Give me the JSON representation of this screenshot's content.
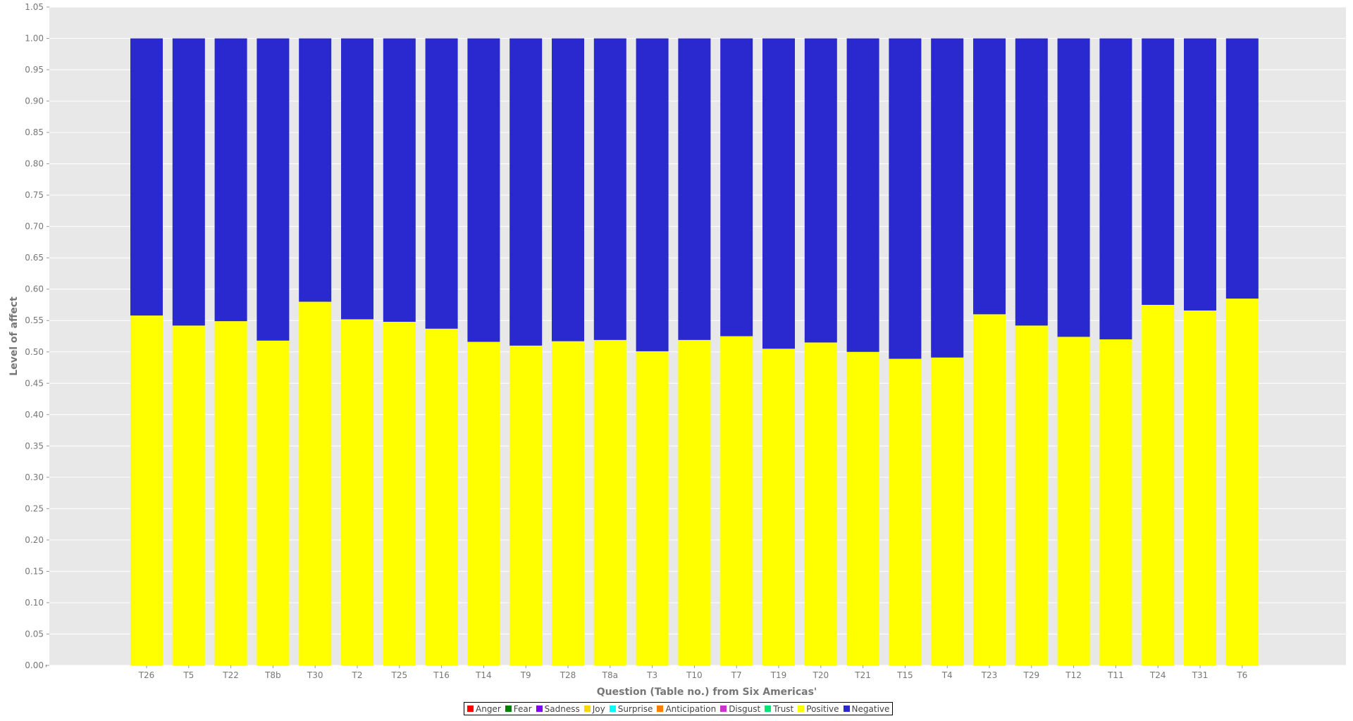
{
  "chart_data": {
    "type": "bar",
    "stacked": true,
    "xlabel": "Question (Table no.) from Six Americas'",
    "ylabel": "Level of affect",
    "ylim": [
      0,
      1.05
    ],
    "yticks": [
      "0.00",
      "0.05",
      "0.10",
      "0.15",
      "0.20",
      "0.25",
      "0.30",
      "0.35",
      "0.40",
      "0.45",
      "0.50",
      "0.55",
      "0.60",
      "0.65",
      "0.70",
      "0.75",
      "0.80",
      "0.85",
      "0.90",
      "0.95",
      "1.00",
      "1.05"
    ],
    "grid": true,
    "legend_position": "bottom-center",
    "leading_tick_label": "'",
    "categories": [
      "T26",
      "T5",
      "T22",
      "T8b",
      "T30",
      "T2",
      "T25",
      "T16",
      "T14",
      "T9",
      "T28",
      "T8a",
      "T3",
      "T10",
      "T7",
      "T19",
      "T20",
      "T21",
      "T15",
      "T4",
      "T23",
      "T29",
      "T12",
      "T11",
      "T24",
      "T31",
      "T6"
    ],
    "series": [
      {
        "name": "Positive",
        "color": "#ffff00",
        "values": [
          0.558,
          0.542,
          0.549,
          0.518,
          0.58,
          0.552,
          0.548,
          0.537,
          0.516,
          0.51,
          0.517,
          0.519,
          0.501,
          0.519,
          0.525,
          0.505,
          0.515,
          0.5,
          0.489,
          0.491,
          0.56,
          0.542,
          0.524,
          0.52,
          0.575,
          0.566,
          0.585
        ]
      },
      {
        "name": "Negative",
        "color": "#2929cf",
        "values": [
          0.442,
          0.458,
          0.451,
          0.482,
          0.42,
          0.448,
          0.452,
          0.463,
          0.484,
          0.49,
          0.483,
          0.481,
          0.499,
          0.481,
          0.475,
          0.495,
          0.485,
          0.5,
          0.511,
          0.509,
          0.44,
          0.458,
          0.476,
          0.48,
          0.425,
          0.434,
          0.415
        ]
      }
    ]
  },
  "legend": [
    {
      "name": "Anger",
      "color": "#ff0000"
    },
    {
      "name": "Fear",
      "color": "#008000"
    },
    {
      "name": "Sadness",
      "color": "#7f00ff"
    },
    {
      "name": "Joy",
      "color": "#ffd700"
    },
    {
      "name": "Surprise",
      "color": "#00ffff"
    },
    {
      "name": "Anticipation",
      "color": "#ff7f00"
    },
    {
      "name": "Disgust",
      "color": "#cc33cc"
    },
    {
      "name": "Trust",
      "color": "#00e676"
    },
    {
      "name": "Positive",
      "color": "#ffff00"
    },
    {
      "name": "Negative",
      "color": "#2929cf"
    }
  ],
  "style": {
    "plot_background": "#e8e8e8",
    "grid_color": "#ffffff",
    "text_color": "#777777"
  }
}
